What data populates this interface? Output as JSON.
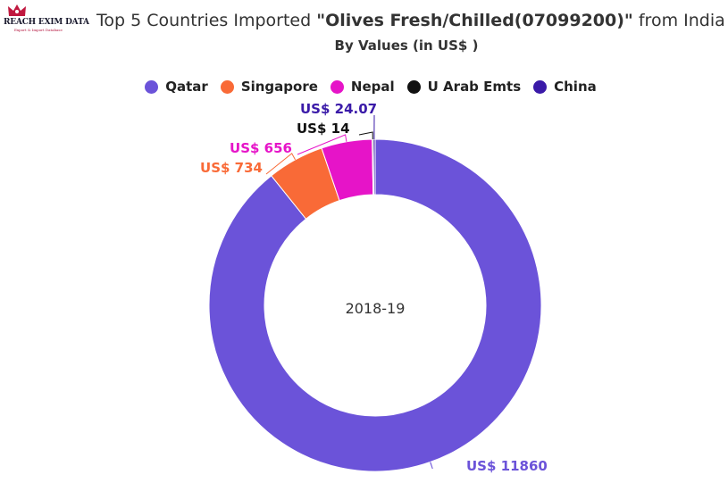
{
  "logo": {
    "name": "REACH EXIM DATA",
    "tagline": "Export & Import Database"
  },
  "title": {
    "prefix": "Top 5 Countries Imported ",
    "product": "\"Olives Fresh/Chilled(07099200)\"",
    "suffix": " from India"
  },
  "subtitle": "By Values (in US$ )",
  "chart_data": {
    "type": "pie",
    "donut": true,
    "center_label": "2018-19",
    "legend_position": "top-center",
    "series": [
      {
        "name": "Qatar",
        "value": 11860,
        "label": "US$ 11860",
        "color": "#6b53d9"
      },
      {
        "name": "Singapore",
        "value": 734,
        "label": "US$ 734",
        "color": "#f96a37"
      },
      {
        "name": "Nepal",
        "value": 656,
        "label": "US$ 656",
        "color": "#e614c8"
      },
      {
        "name": "U Arab Emts",
        "value": 14,
        "label": "US$ 14",
        "color": "#111111"
      },
      {
        "name": "China",
        "value": 24.07,
        "label": "US$ 24.07",
        "color": "#3a1aa8"
      }
    ]
  }
}
